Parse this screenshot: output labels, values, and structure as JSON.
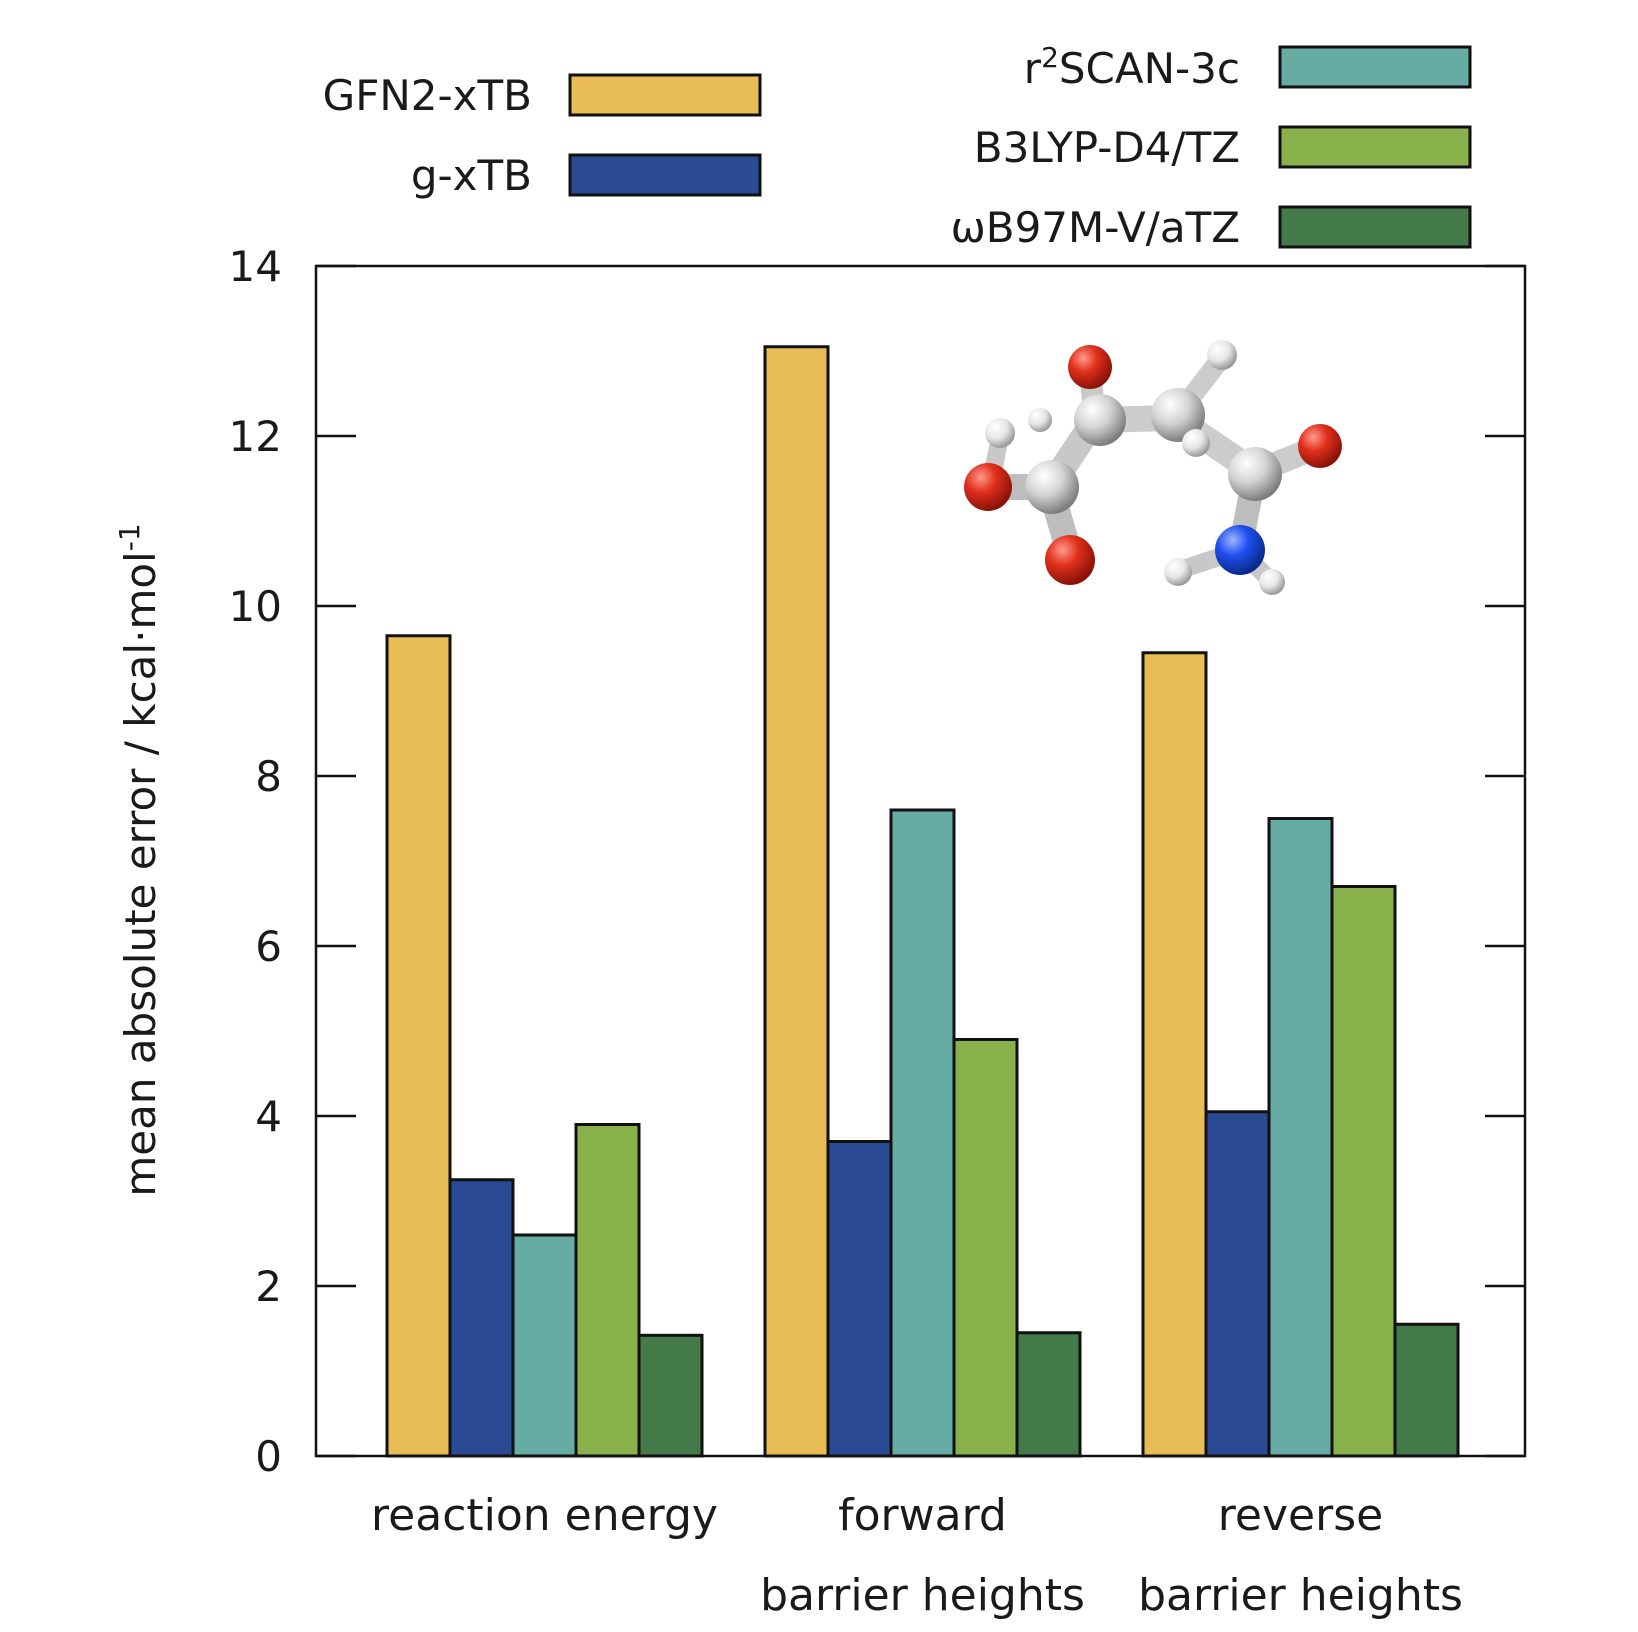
{
  "chart_data": {
    "type": "bar",
    "title": "",
    "xlabel": "",
    "ylabel_main": "mean absolute error / kcal·mol",
    "ylabel_sup": "-1",
    "ylim": [
      0,
      14
    ],
    "yticks": [
      0,
      2,
      4,
      6,
      8,
      10,
      12,
      14
    ],
    "grid": false,
    "legend_position": "top",
    "categories": [
      {
        "line1": "reaction energy",
        "line2": ""
      },
      {
        "line1": "forward",
        "line2": "barrier heights"
      },
      {
        "line1": "reverse",
        "line2": "barrier heights"
      }
    ],
    "series": [
      {
        "name": "GFN2-xTB",
        "name_base": "GFN2-xTB",
        "name_sup": "",
        "name_rest": "",
        "color": "#e8bd56",
        "values": [
          9.65,
          13.05,
          9.45
        ]
      },
      {
        "name": "g-xTB",
        "name_base": "g-xTB",
        "name_sup": "",
        "name_rest": "",
        "color": "#2b4a94",
        "values": [
          3.25,
          3.7,
          4.05
        ]
      },
      {
        "name": "r2SCAN-3c",
        "name_base": "r",
        "name_sup": "2",
        "name_rest": "SCAN-3c",
        "color": "#66aca4",
        "values": [
          2.6,
          7.6,
          7.5
        ]
      },
      {
        "name": "B3LYP-D4/TZ",
        "name_base": "B3LYP-D4/TZ",
        "name_sup": "",
        "name_rest": "",
        "color": "#88b14b",
        "values": [
          3.9,
          4.9,
          6.7
        ]
      },
      {
        "name": "ωB97M-V/aTZ",
        "name_base": "ωB97M-V/aTZ",
        "name_sup": "",
        "name_rest": "",
        "color": "#447a49",
        "values": [
          1.42,
          1.45,
          1.55
        ]
      }
    ],
    "inset": "ball-and-stick molecule (red oxygen, blue nitrogen, white hydrogen, grey carbon)"
  }
}
